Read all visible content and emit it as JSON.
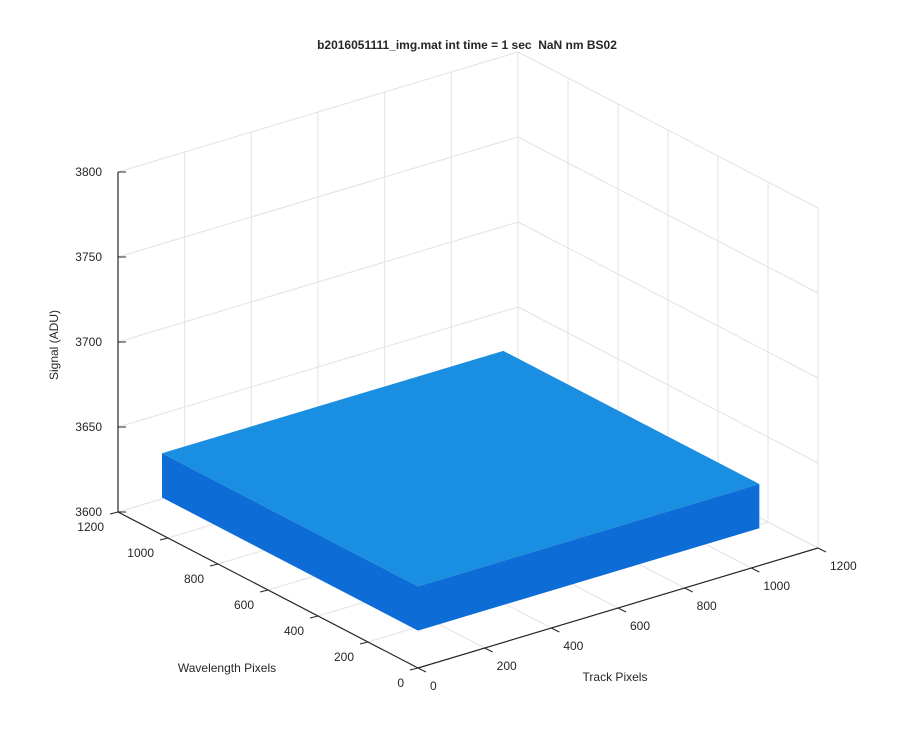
{
  "chart_data": {
    "type": "surface",
    "title": "b2016051111_img.mat int time = 1 sec  NaN nm BS02",
    "xlabel": "Track Pixels",
    "ylabel": "Wavelength Pixels",
    "zlabel": "Signal (ADU)",
    "xlim": [
      0,
      1200
    ],
    "ylim": [
      0,
      1200
    ],
    "zlim": [
      3600,
      3800
    ],
    "xticks": [
      0,
      200,
      400,
      600,
      800,
      1000,
      1200
    ],
    "yticks": [
      0,
      200,
      400,
      600,
      800,
      1000,
      1200
    ],
    "zticks": [
      3600,
      3650,
      3700,
      3750,
      3800
    ],
    "grid": true,
    "surface": {
      "x": [
        0,
        1024
      ],
      "y": [
        0,
        1024
      ],
      "z_top": [
        [
          3648,
          3648
        ],
        [
          3648,
          3648
        ]
      ],
      "z_bottom": [
        [
          3622,
          3622
        ],
        [
          3622,
          3622
        ]
      ],
      "color": "#1a8ee0",
      "side_color": "#0d6cd6"
    }
  }
}
